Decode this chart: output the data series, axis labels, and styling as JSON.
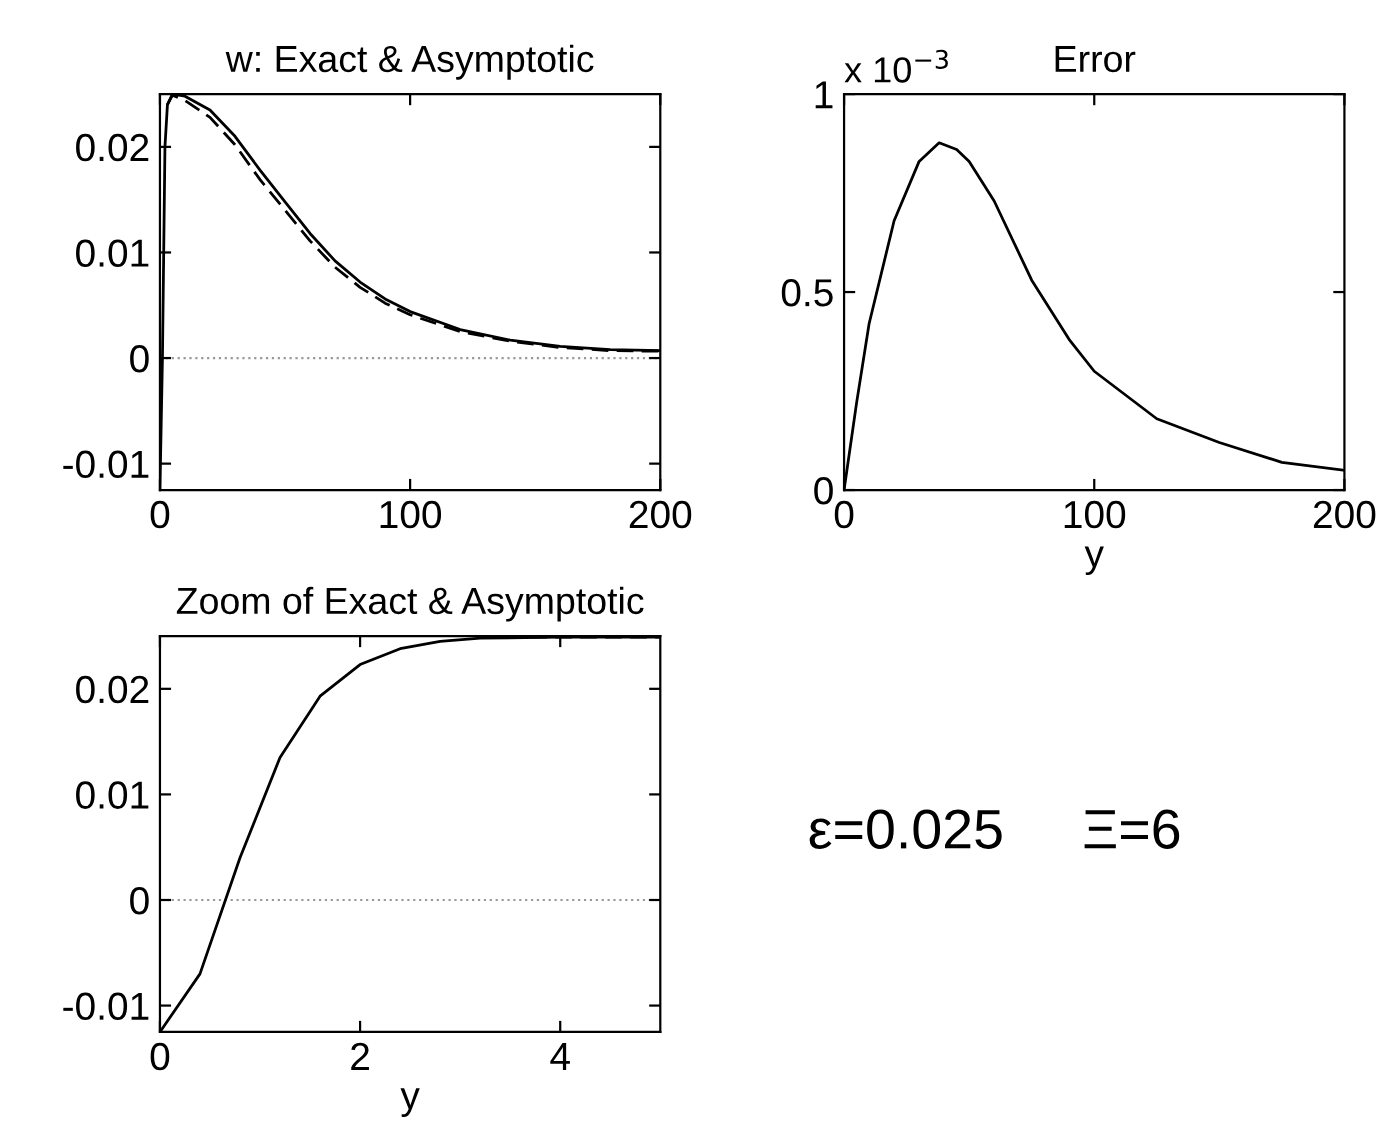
{
  "chart_data": [
    {
      "type": "line",
      "title": "w: Exact & Asymptotic",
      "xlim": [
        0,
        200
      ],
      "ylim": [
        -0.0125,
        0.025
      ],
      "xticks": [
        0,
        100,
        200
      ],
      "yticks": [
        -0.01,
        0,
        0.01,
        0.02
      ],
      "grid": false,
      "legend": false,
      "ref_lines": [
        {
          "axis": "y",
          "value": 0,
          "color": "#999999",
          "line_style": "dotted"
        }
      ],
      "series": [
        {
          "color": "#000000",
          "line_style": "solid",
          "x": [
            0,
            1,
            2,
            3,
            5,
            10,
            20,
            30,
            40,
            50,
            60,
            70,
            80,
            90,
            100,
            120,
            140,
            160,
            180,
            200
          ],
          "values": [
            -0.0125,
            0.0,
            0.02,
            0.024,
            0.025,
            0.0248,
            0.0235,
            0.021,
            0.0178,
            0.0148,
            0.0118,
            0.0092,
            0.0072,
            0.0056,
            0.0044,
            0.0027,
            0.0017,
            0.0011,
            0.0008,
            0.0007
          ]
        },
        {
          "color": "#000000",
          "line_style": "dashed",
          "x": [
            3,
            5,
            10,
            20,
            30,
            40,
            50,
            60,
            70,
            80,
            90,
            100,
            120,
            140,
            160,
            180,
            200
          ],
          "values": [
            0.024,
            0.0249,
            0.0244,
            0.0228,
            0.0202,
            0.0169,
            0.014,
            0.0111,
            0.0086,
            0.0067,
            0.0052,
            0.0041,
            0.0025,
            0.0016,
            0.001,
            0.0007,
            0.00065
          ]
        }
      ]
    },
    {
      "type": "line",
      "title": "Error",
      "xlabel": "y",
      "xlim": [
        0,
        200
      ],
      "ylim": [
        0,
        1
      ],
      "xticks": [
        0,
        100,
        200
      ],
      "yticks": [
        0,
        0.5,
        1
      ],
      "grid": false,
      "legend": false,
      "annotations": [
        "x 10$^{−3}$"
      ],
      "series": [
        {
          "color": "#000000",
          "line_style": "solid",
          "x": [
            0,
            5,
            10,
            20,
            30,
            38,
            45,
            50,
            60,
            75,
            90,
            100,
            125,
            150,
            175,
            200
          ],
          "values": [
            0,
            0.22,
            0.42,
            0.68,
            0.83,
            0.877,
            0.86,
            0.83,
            0.73,
            0.53,
            0.38,
            0.3,
            0.18,
            0.12,
            0.07,
            0.05
          ]
        }
      ]
    },
    {
      "type": "line",
      "title": "Zoom of Exact & Asymptotic",
      "xlabel": "y",
      "xlim": [
        0,
        5
      ],
      "ylim": [
        -0.0125,
        0.025
      ],
      "xticks": [
        0,
        2,
        4
      ],
      "yticks": [
        -0.01,
        0,
        0.01,
        0.02
      ],
      "grid": false,
      "legend": false,
      "ref_lines": [
        {
          "axis": "y",
          "value": 0,
          "color": "#999999",
          "line_style": "dotted"
        }
      ],
      "series": [
        {
          "color": "#000000",
          "line_style": "solid",
          "x": [
            0,
            0.4,
            0.8,
            1.2,
            1.6,
            2.0,
            2.4,
            2.8,
            3.2,
            4,
            5
          ],
          "values": [
            -0.0125,
            -0.007,
            0.004,
            0.0135,
            0.0193,
            0.0223,
            0.0238,
            0.0245,
            0.0248,
            0.0249,
            0.0249
          ]
        },
        {
          "color": "#000000",
          "line_style": "dashed",
          "x": [
            3.2,
            4,
            5
          ],
          "values": [
            0.0249,
            0.0249,
            0.0249
          ]
        }
      ]
    },
    {
      "type": "other",
      "annotations": [
        "ε=0.025",
        "Ξ=6"
      ]
    }
  ]
}
